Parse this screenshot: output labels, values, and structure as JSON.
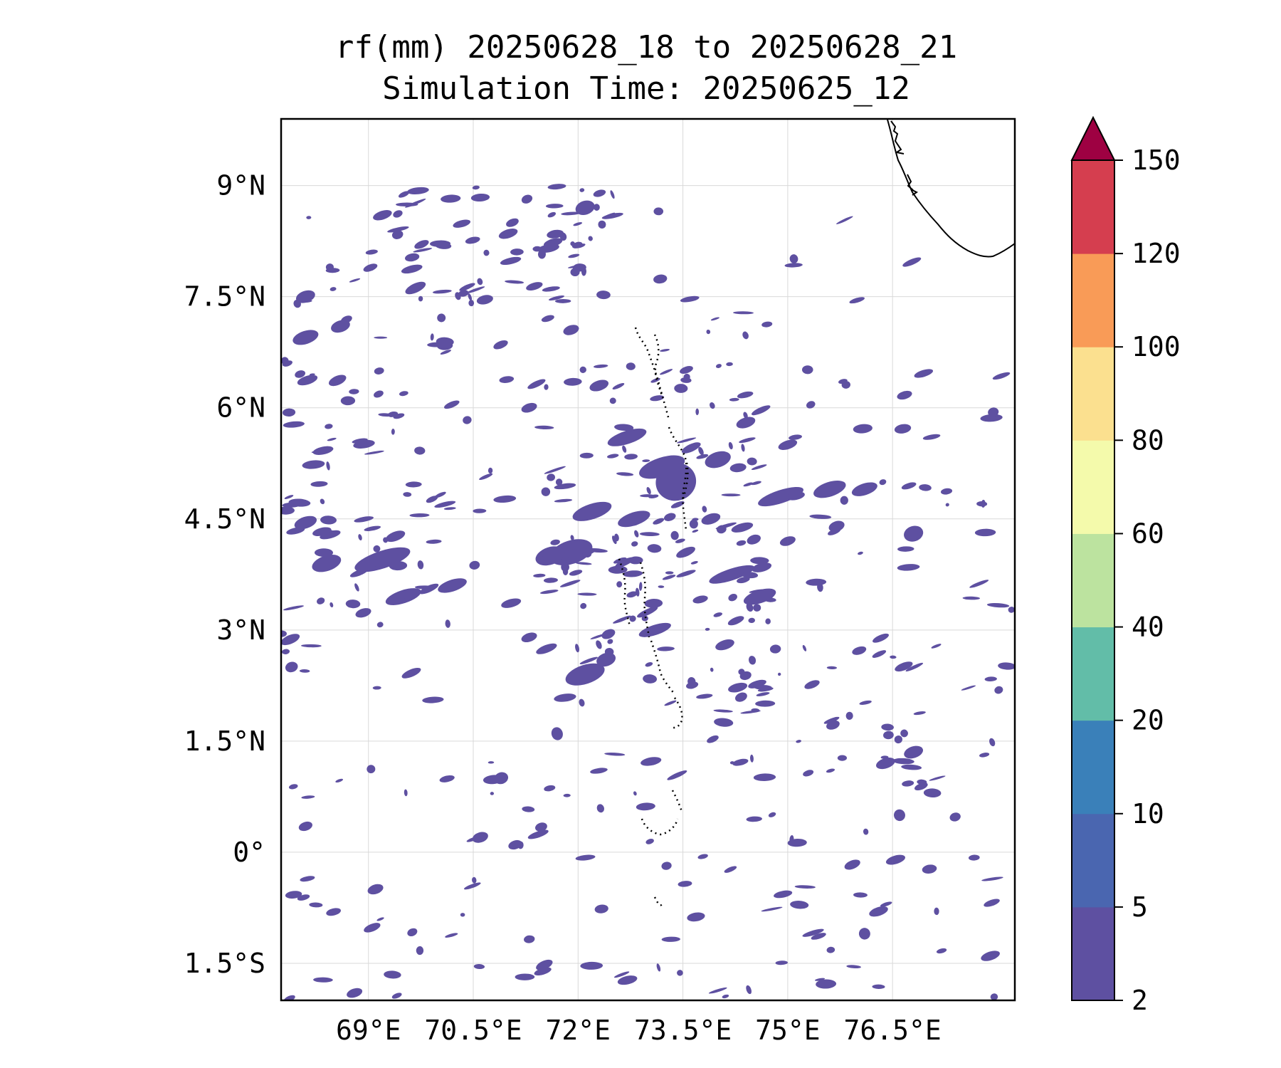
{
  "title": {
    "line1": "rf(mm) 20250628_18 to 20250628_21",
    "line2": "Simulation Time: 20250625_12"
  },
  "map": {
    "lon_range": [
      67.75,
      78.25
    ],
    "lat_range": [
      -2.0,
      9.9
    ],
    "x_ticks": [
      {
        "value": 69.0,
        "label": "69°E"
      },
      {
        "value": 70.5,
        "label": "70.5°E"
      },
      {
        "value": 72.0,
        "label": "72°E"
      },
      {
        "value": 73.5,
        "label": "73.5°E"
      },
      {
        "value": 75.0,
        "label": "75°E"
      },
      {
        "value": 76.5,
        "label": "76.5°E"
      }
    ],
    "y_ticks": [
      {
        "value": 9.0,
        "label": "9°N"
      },
      {
        "value": 7.5,
        "label": "7.5°N"
      },
      {
        "value": 6.0,
        "label": "6°N"
      },
      {
        "value": 4.5,
        "label": "4.5°N"
      },
      {
        "value": 3.0,
        "label": "3°N"
      },
      {
        "value": 1.5,
        "label": "1.5°N"
      },
      {
        "value": 0.0,
        "label": "0°"
      },
      {
        "value": -1.5,
        "label": "1.5°S"
      }
    ],
    "gridlines": true,
    "rain_color": "#5e50a1"
  },
  "colorbar": {
    "levels": [
      "2",
      "5",
      "10",
      "20",
      "40",
      "60",
      "80",
      "100",
      "120",
      "150"
    ],
    "colors": [
      "#5e50a1",
      "#4a66b0",
      "#3a80b9",
      "#62bda8",
      "#bce39f",
      "#f4faab",
      "#fbe08f",
      "#f99b57",
      "#d53e4f"
    ],
    "extend_color": "#9e0142",
    "extend": "max"
  },
  "chart_data": {
    "type": "heatmap",
    "title": "rf(mm) 20250628_18 to 20250628_21",
    "subtitle": "Simulation Time: 20250625_12",
    "x_range": [
      67.75,
      78.25
    ],
    "y_range": [
      -2.0,
      9.9
    ],
    "colorbar_levels": [
      2,
      5,
      10,
      20,
      40,
      60,
      80,
      100,
      120,
      150
    ],
    "observed_bins": [
      "2-5"
    ],
    "rain_cells": [
      [
        71.9,
        4.05,
        0.55,
        0.26
      ],
      [
        71.6,
        4.0,
        0.35,
        0.18
      ],
      [
        73.4,
        5.0,
        0.5,
        0.45
      ],
      [
        73.2,
        5.2,
        0.6,
        0.2
      ],
      [
        74.0,
        5.3,
        0.3,
        0.15
      ],
      [
        72.7,
        5.6,
        0.5,
        0.12
      ],
      [
        72.2,
        4.6,
        0.5,
        0.15
      ],
      [
        72.8,
        4.5,
        0.4,
        0.12
      ],
      [
        74.9,
        4.8,
        0.6,
        0.12
      ],
      [
        75.6,
        4.9,
        0.4,
        0.14
      ],
      [
        76.1,
        4.9,
        0.3,
        0.1
      ],
      [
        74.2,
        3.75,
        0.6,
        0.1
      ],
      [
        74.6,
        3.45,
        0.4,
        0.12
      ],
      [
        73.1,
        3.0,
        0.4,
        0.08
      ],
      [
        72.1,
        2.4,
        0.5,
        0.2
      ],
      [
        72.4,
        2.6,
        0.2,
        0.12
      ],
      [
        74.1,
        2.8,
        0.2,
        0.07
      ],
      [
        69.2,
        3.95,
        0.75,
        0.18
      ],
      [
        68.4,
        3.9,
        0.35,
        0.15
      ],
      [
        69.5,
        3.45,
        0.45,
        0.12
      ],
      [
        70.2,
        3.6,
        0.35,
        0.1
      ],
      [
        68.1,
        4.45,
        0.25,
        0.1
      ],
      [
        68.1,
        6.95,
        0.3,
        0.12
      ],
      [
        68.1,
        7.5,
        0.2,
        0.1
      ],
      [
        68.6,
        7.1,
        0.2,
        0.1
      ],
      [
        69.2,
        8.6,
        0.2,
        0.06
      ],
      [
        72.1,
        8.7,
        0.2,
        0.13
      ],
      [
        71.0,
        8.35,
        0.2,
        0.06
      ],
      [
        76.8,
        4.3,
        0.2,
        0.15
      ],
      [
        76.8,
        1.35,
        0.2,
        0.1
      ],
      [
        76.4,
        1.2,
        0.2,
        0.08
      ],
      [
        68.1,
        0.35,
        0.12,
        0.06
      ],
      [
        67.9,
        2.5,
        0.1,
        0.08
      ],
      [
        71.9,
        7.05,
        0.15,
        0.07
      ],
      [
        71.3,
        6.0,
        0.15,
        0.06
      ],
      [
        72.3,
        6.3,
        0.2,
        0.08
      ],
      [
        74.4,
        5.8,
        0.2,
        0.08
      ],
      [
        75.0,
        5.5,
        0.2,
        0.06
      ],
      [
        73.9,
        4.5,
        0.2,
        0.08
      ],
      [
        75.0,
        4.2,
        0.15,
        0.06
      ],
      [
        75.7,
        4.4,
        0.15,
        0.08
      ],
      [
        71.3,
        2.9,
        0.15,
        0.06
      ],
      [
        71.7,
        1.6,
        0.08,
        0.12
      ],
      [
        70.9,
        1.0,
        0.12,
        0.1
      ],
      [
        70.6,
        0.2,
        0.15,
        0.08
      ],
      [
        71.1,
        0.1,
        0.12,
        0.06
      ],
      [
        69.1,
        -0.5,
        0.15,
        0.07
      ],
      [
        68.8,
        -1.9,
        0.15,
        0.06
      ],
      [
        76.3,
        -0.8,
        0.2,
        0.06
      ],
      [
        76.1,
        -1.1,
        0.08,
        0.1
      ],
      [
        77.9,
        -1.4,
        0.2,
        0.06
      ],
      [
        76.6,
        0.5,
        0.08,
        0.1
      ]
    ]
  }
}
